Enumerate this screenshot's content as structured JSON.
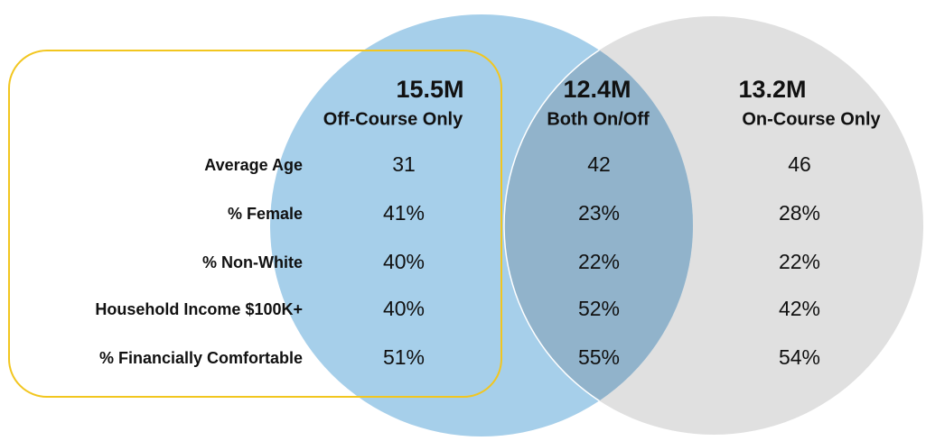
{
  "rows": [
    "Average Age",
    "% Female",
    "% Non-White",
    "Household Income $100K+",
    "% Financially Comfortable"
  ],
  "columns": [
    {
      "total": "15.5M",
      "label": "Off-Course Only",
      "values": [
        "31",
        "41%",
        "40%",
        "40%",
        "51%"
      ]
    },
    {
      "total": "12.4M",
      "label": "Both On/Off",
      "values": [
        "42",
        "23%",
        "22%",
        "52%",
        "55%"
      ]
    },
    {
      "total": "13.2M",
      "label": "On-Course Only",
      "values": [
        "46",
        "28%",
        "22%",
        "42%",
        "54%"
      ]
    }
  ]
}
